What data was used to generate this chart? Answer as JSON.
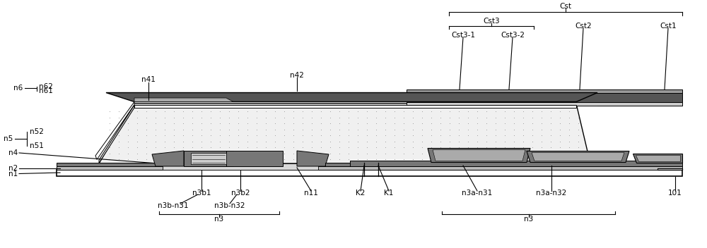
{
  "fig_width": 10.0,
  "fig_height": 3.52,
  "bg": "#ffffff",
  "c_white": "#ffffff",
  "c_lgray": "#cccccc",
  "c_mgray": "#888888",
  "c_dgray": "#555555",
  "c_dot": "#f0f0f0",
  "labels": {
    "n1": "n1",
    "n2": "n2",
    "n4": "n4",
    "n41": "n41",
    "n42": "n42",
    "n5": "n5",
    "n51": "n51",
    "n52": "n52",
    "n6": "n6",
    "n61": "n61",
    "n62": "n62",
    "n11": "n11",
    "K2": "K2",
    "K1": "K1",
    "n3b1": "n3b1",
    "n3b2": "n3b2",
    "n3b_n31": "n3b-n31",
    "n3b_n32": "n3b-n32",
    "n3a_n31": "n3a-n31",
    "n3a_n32": "n3a-n32",
    "n3": "n3",
    "p101": "101",
    "Cst": "Cst",
    "Cst1": "Cst1",
    "Cst2": "Cst2",
    "Cst3": "Cst3",
    "Cst31": "Cst3-1",
    "Cst32": "Cst3-2"
  }
}
